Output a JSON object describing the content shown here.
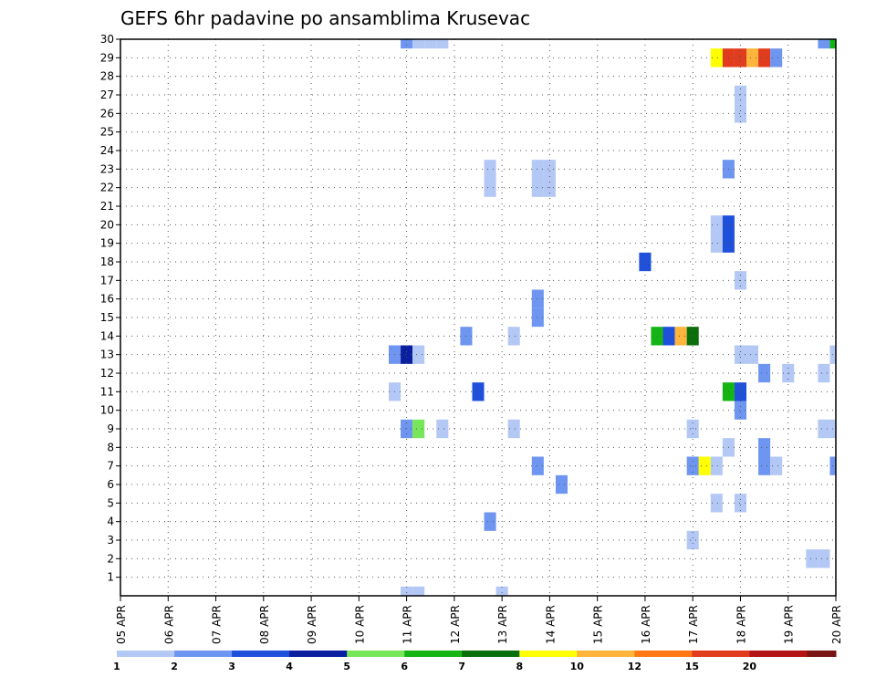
{
  "chart_data": {
    "type": "heatmap",
    "title": "GEFS 6hr padavine po ansamblima Krusevac",
    "xlabel": "",
    "ylabel": "",
    "x_tick_labels": [
      "05 APR",
      "06 APR",
      "07 APR",
      "08 APR",
      "09 APR",
      "10 APR",
      "11 APR",
      "12 APR",
      "13 APR",
      "14 APR",
      "15 APR",
      "16 APR",
      "17 APR",
      "18 APR",
      "19 APR",
      "20 APR"
    ],
    "y_tick_labels": [
      "1",
      "2",
      "3",
      "4",
      "5",
      "6",
      "7",
      "8",
      "9",
      "10",
      "11",
      "12",
      "13",
      "14",
      "15",
      "16",
      "17",
      "18",
      "19",
      "20",
      "21",
      "22",
      "23",
      "24",
      "25",
      "26",
      "27",
      "28",
      "29",
      "30"
    ],
    "x_unit": "6-hour step (0 = 05 APR 00Z)",
    "xlim": [
      0,
      60
    ],
    "ylim": [
      0,
      30
    ],
    "grid": true,
    "legend": {
      "position": "bottom",
      "colors": [
        "#b4c8f5",
        "#6e96f0",
        "#1e50dc",
        "#0a1ea0",
        "#78e65a",
        "#14b414",
        "#0a6e0a",
        "#ffff00",
        "#ffb43c",
        "#ff7814",
        "#e13c1e",
        "#b41414",
        "#781414"
      ],
      "labels": [
        "1",
        "2",
        "3",
        "4",
        "5",
        "6",
        "7",
        "8",
        "10",
        "12",
        "15",
        "20"
      ]
    },
    "cells": [
      {
        "m": 30,
        "t": 24,
        "v": 2
      },
      {
        "m": 30,
        "t": 25,
        "v": 1
      },
      {
        "m": 30,
        "t": 26,
        "v": 1
      },
      {
        "m": 30,
        "t": 27,
        "v": 1
      },
      {
        "m": 30,
        "t": 59,
        "v": 2
      },
      {
        "m": 30,
        "t": 60,
        "v": 6
      },
      {
        "m": 29,
        "t": 50,
        "v": 8
      },
      {
        "m": 29,
        "t": 51,
        "v": 15
      },
      {
        "m": 29,
        "t": 52,
        "v": 15
      },
      {
        "m": 29,
        "t": 53,
        "v": 10
      },
      {
        "m": 29,
        "t": 54,
        "v": 15
      },
      {
        "m": 29,
        "t": 55,
        "v": 2
      },
      {
        "m": 27,
        "t": 52,
        "v": 1
      },
      {
        "m": 26,
        "t": 52,
        "v": 1
      },
      {
        "m": 23,
        "t": 31,
        "v": 1
      },
      {
        "m": 23,
        "t": 35,
        "v": 1
      },
      {
        "m": 23,
        "t": 36,
        "v": 1
      },
      {
        "m": 23,
        "t": 51,
        "v": 2
      },
      {
        "m": 22,
        "t": 31,
        "v": 1
      },
      {
        "m": 22,
        "t": 35,
        "v": 1
      },
      {
        "m": 22,
        "t": 36,
        "v": 1
      },
      {
        "m": 20,
        "t": 50,
        "v": 1
      },
      {
        "m": 20,
        "t": 51,
        "v": 3
      },
      {
        "m": 19,
        "t": 50,
        "v": 1
      },
      {
        "m": 19,
        "t": 51,
        "v": 3
      },
      {
        "m": 18,
        "t": 44,
        "v": 3
      },
      {
        "m": 17,
        "t": 52,
        "v": 1
      },
      {
        "m": 16,
        "t": 35,
        "v": 2
      },
      {
        "m": 15,
        "t": 35,
        "v": 2
      },
      {
        "m": 14,
        "t": 29,
        "v": 2
      },
      {
        "m": 14,
        "t": 33,
        "v": 1
      },
      {
        "m": 14,
        "t": 45,
        "v": 6
      },
      {
        "m": 14,
        "t": 46,
        "v": 3
      },
      {
        "m": 14,
        "t": 47,
        "v": 10
      },
      {
        "m": 14,
        "t": 48,
        "v": 7
      },
      {
        "m": 13,
        "t": 23,
        "v": 2
      },
      {
        "m": 13,
        "t": 24,
        "v": 4
      },
      {
        "m": 13,
        "t": 25,
        "v": 1
      },
      {
        "m": 13,
        "t": 52,
        "v": 1
      },
      {
        "m": 13,
        "t": 53,
        "v": 1
      },
      {
        "m": 13,
        "t": 60,
        "v": 1
      },
      {
        "m": 12,
        "t": 54,
        "v": 2
      },
      {
        "m": 12,
        "t": 56,
        "v": 1
      },
      {
        "m": 12,
        "t": 59,
        "v": 1
      },
      {
        "m": 11,
        "t": 23,
        "v": 1
      },
      {
        "m": 11,
        "t": 30,
        "v": 3
      },
      {
        "m": 11,
        "t": 51,
        "v": 6
      },
      {
        "m": 11,
        "t": 52,
        "v": 3
      },
      {
        "m": 10,
        "t": 52,
        "v": 2
      },
      {
        "m": 9,
        "t": 24,
        "v": 2
      },
      {
        "m": 9,
        "t": 25,
        "v": 5
      },
      {
        "m": 9,
        "t": 27,
        "v": 1
      },
      {
        "m": 9,
        "t": 33,
        "v": 1
      },
      {
        "m": 9,
        "t": 48,
        "v": 1
      },
      {
        "m": 9,
        "t": 59,
        "v": 1
      },
      {
        "m": 9,
        "t": 60,
        "v": 1
      },
      {
        "m": 8,
        "t": 51,
        "v": 1
      },
      {
        "m": 8,
        "t": 54,
        "v": 2
      },
      {
        "m": 7,
        "t": 35,
        "v": 2
      },
      {
        "m": 7,
        "t": 48,
        "v": 2
      },
      {
        "m": 7,
        "t": 49,
        "v": 8
      },
      {
        "m": 7,
        "t": 50,
        "v": 1
      },
      {
        "m": 7,
        "t": 54,
        "v": 2
      },
      {
        "m": 7,
        "t": 55,
        "v": 1
      },
      {
        "m": 7,
        "t": 60,
        "v": 2
      },
      {
        "m": 6,
        "t": 37,
        "v": 2
      },
      {
        "m": 5,
        "t": 50,
        "v": 1
      },
      {
        "m": 5,
        "t": 52,
        "v": 1
      },
      {
        "m": 4,
        "t": 31,
        "v": 2
      },
      {
        "m": 3,
        "t": 48,
        "v": 1
      },
      {
        "m": 2,
        "t": 58,
        "v": 1
      },
      {
        "m": 2,
        "t": 59,
        "v": 1
      },
      {
        "m": 0,
        "t": 24,
        "v": 1
      },
      {
        "m": 0,
        "t": 25,
        "v": 1
      },
      {
        "m": 0,
        "t": 32,
        "v": 1
      }
    ]
  }
}
